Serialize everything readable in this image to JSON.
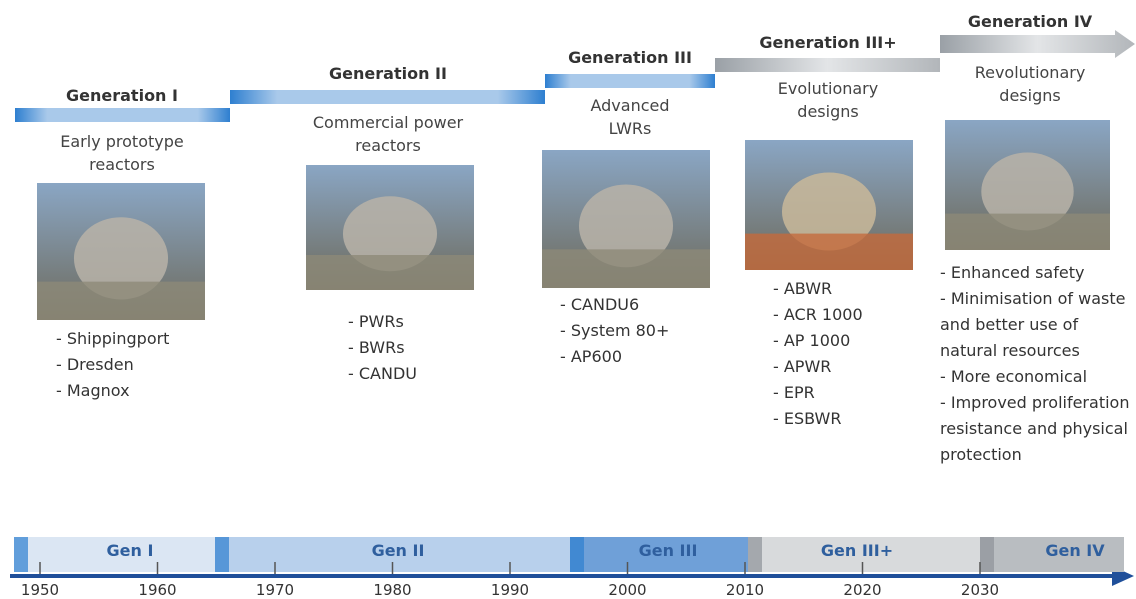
{
  "generations": [
    {
      "title": "Generation I",
      "description": "Early prototype reactors",
      "items": [
        "- Shippingport",
        "- Dresden",
        "- Magnox"
      ]
    },
    {
      "title": "Generation II",
      "description": "Commercial power reactors",
      "items": [
        "- PWRs",
        "- BWRs",
        "- CANDU"
      ]
    },
    {
      "title": "Generation III",
      "description": "Advanced LWRs",
      "items": [
        "- CANDU6",
        "- System 80+",
        "- AP600"
      ]
    },
    {
      "title": "Generation III+",
      "description": "Evolutionary designs",
      "items": [
        "- ABWR",
        "- ACR 1000",
        "- AP 1000",
        "- APWR",
        "- EPR",
        "- ESBWR"
      ]
    },
    {
      "title": "Generation IV",
      "description": "Revolutionary designs",
      "items": [
        "- Enhanced safety",
        "- Minimisation of waste and better use of natural resources",
        "- More economical",
        "- Improved proliferation resistance and physical protection"
      ]
    }
  ],
  "timeline": {
    "bands": [
      "Gen I",
      "Gen II",
      "Gen III",
      "Gen III+",
      "Gen IV"
    ],
    "years": [
      1950,
      1960,
      1970,
      1980,
      1990,
      2000,
      2010,
      2020,
      2030
    ]
  }
}
